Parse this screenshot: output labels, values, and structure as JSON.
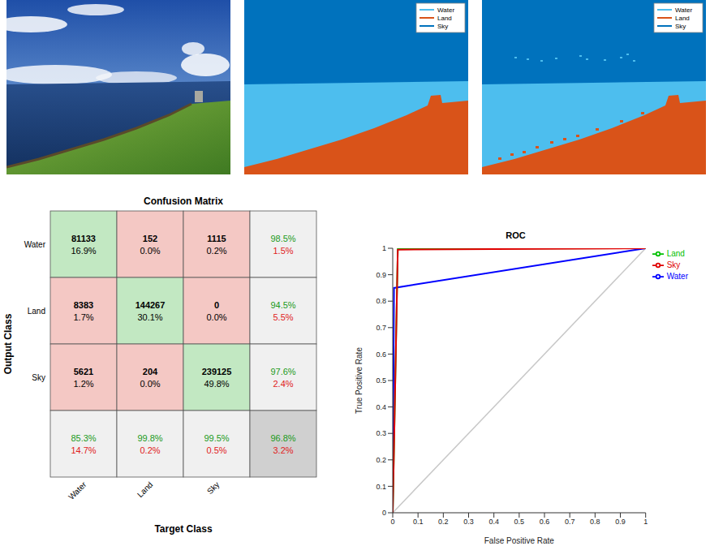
{
  "segmentation": {
    "legend": [
      {
        "name": "Water",
        "color": "#4dbeee"
      },
      {
        "name": "Land",
        "color": "#d95319"
      },
      {
        "name": "Sky",
        "color": "#0072bd"
      }
    ]
  },
  "confusion_matrix": {
    "title": "Confusion Matrix",
    "y_label": "Output Class",
    "x_label": "Target Class",
    "classes": [
      "Water",
      "Land",
      "Sky"
    ],
    "cells": [
      [
        {
          "count": 81133,
          "percent": "16.9%"
        },
        {
          "count": 152,
          "percent": "0.0%"
        },
        {
          "count": 1115,
          "percent": "0.2%"
        }
      ],
      [
        {
          "count": 8383,
          "percent": "1.7%"
        },
        {
          "count": 144267,
          "percent": "30.1%"
        },
        {
          "count": 0,
          "percent": "0.0%"
        }
      ],
      [
        {
          "count": 5621,
          "percent": "1.2%"
        },
        {
          "count": 204,
          "percent": "0.0%"
        },
        {
          "count": 239125,
          "percent": "49.8%"
        }
      ]
    ],
    "row_summary": [
      [
        "98.5%",
        "1.5%"
      ],
      [
        "94.5%",
        "5.5%"
      ],
      [
        "97.6%",
        "2.4%"
      ]
    ],
    "column_summary": [
      [
        "85.3%",
        "14.7%"
      ],
      [
        "99.8%",
        "0.2%"
      ],
      [
        "99.5%",
        "0.5%"
      ]
    ],
    "total": [
      "96.8%",
      "3.2%"
    ]
  },
  "chart_data": {
    "type": "line",
    "title": "ROC",
    "x_label": "False Positive Rate",
    "y_label": "True Positive Rate",
    "xlim": [
      0,
      1
    ],
    "ylim": [
      0,
      1
    ],
    "xticks": [
      0,
      0.1,
      0.2,
      0.3,
      0.4,
      0.5,
      0.6,
      0.7,
      0.8,
      0.9,
      1
    ],
    "yticks": [
      0,
      0.1,
      0.2,
      0.3,
      0.4,
      0.5,
      0.6,
      0.7,
      0.8,
      0.9,
      1
    ],
    "grid": false,
    "legend": "right",
    "diagonal": {
      "color": "#c8c8c8",
      "x": [
        0,
        1
      ],
      "values": [
        0,
        1
      ]
    },
    "series": [
      {
        "name": "Water",
        "color": "#0000ff",
        "x": [
          0,
          0.005,
          1
        ],
        "values": [
          0,
          0.85,
          1
        ]
      },
      {
        "name": "Land",
        "color": "#00c000",
        "x": [
          0,
          0.02,
          1
        ],
        "values": [
          0,
          0.998,
          1
        ]
      },
      {
        "name": "Sky",
        "color": "#e00000",
        "x": [
          0,
          0.02,
          1
        ],
        "values": [
          0,
          0.995,
          1
        ]
      }
    ]
  }
}
